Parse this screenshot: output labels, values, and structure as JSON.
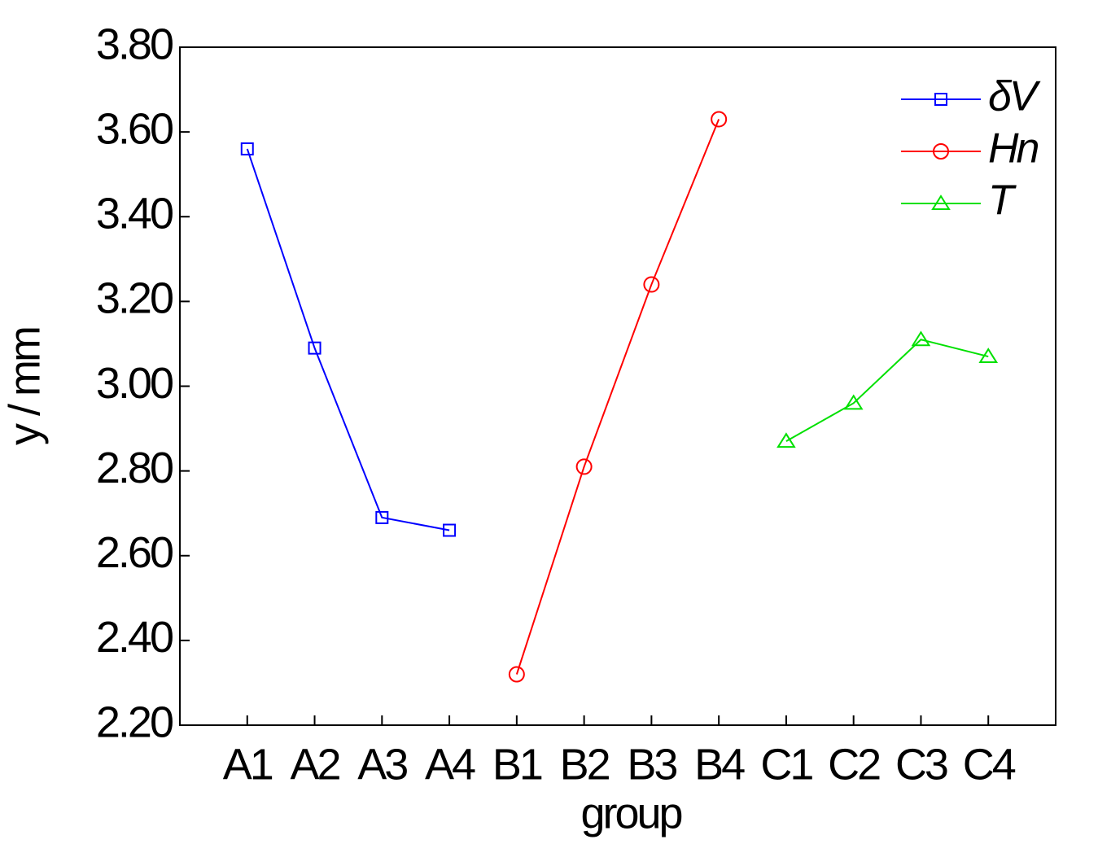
{
  "chart_data": {
    "type": "line",
    "x_label": "group",
    "y_label": "y / mm",
    "categories": [
      "A1",
      "A2",
      "A3",
      "A4",
      "B1",
      "B2",
      "B3",
      "B4",
      "C1",
      "C2",
      "C3",
      "C4"
    ],
    "series": [
      {
        "name": "δV",
        "color": "#0000ff",
        "marker": "square",
        "values": [
          3.56,
          3.09,
          2.69,
          2.66,
          null,
          null,
          null,
          null,
          null,
          null,
          null,
          null
        ]
      },
      {
        "name": "Hn",
        "color": "#ff0000",
        "marker": "circle",
        "values": [
          null,
          null,
          null,
          null,
          2.32,
          2.81,
          3.24,
          3.63,
          null,
          null,
          null,
          null
        ]
      },
      {
        "name": "T",
        "color": "#00e000",
        "marker": "triangle",
        "values": [
          null,
          null,
          null,
          null,
          null,
          null,
          null,
          null,
          2.87,
          2.96,
          3.11,
          3.07
        ]
      }
    ],
    "ylim": [
      2.2,
      3.8
    ],
    "yticks": [
      {
        "value": 2.2,
        "label": "2.20"
      },
      {
        "value": 2.4,
        "label": "2.40"
      },
      {
        "value": 2.6,
        "label": "2.60"
      },
      {
        "value": 2.8,
        "label": "2.80"
      },
      {
        "value": 3.0,
        "label": "3.00"
      },
      {
        "value": 3.2,
        "label": "3.20"
      },
      {
        "value": 3.4,
        "label": "3.40"
      },
      {
        "value": 3.6,
        "label": "3.60"
      },
      {
        "value": 3.8,
        "label": "3.80"
      }
    ],
    "legend": "upper right",
    "grid": false
  }
}
